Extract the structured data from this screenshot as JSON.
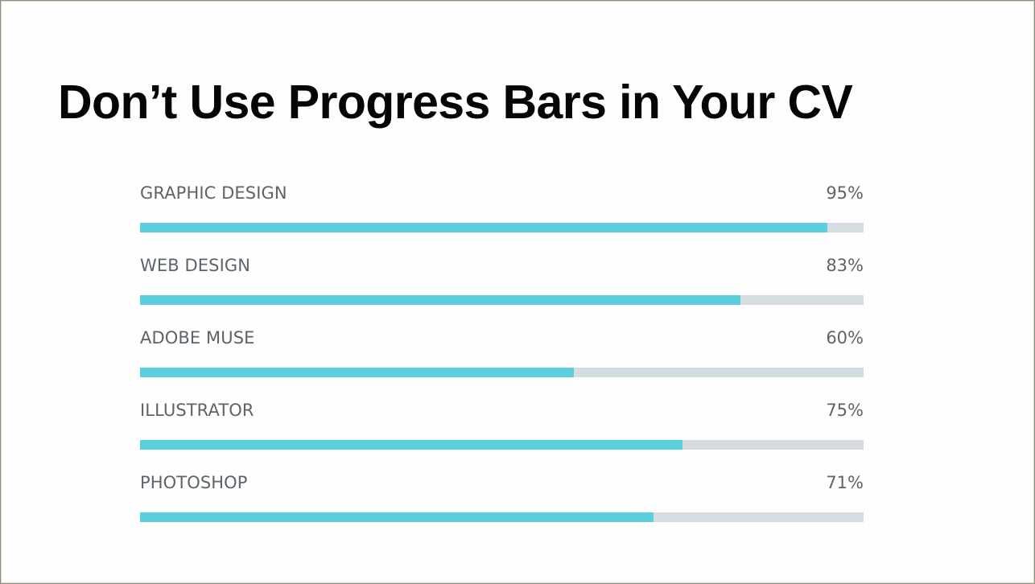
{
  "headline": "Don’t Use Progress Bars in Your CV",
  "colors": {
    "bar_fill": "#5ccfdd",
    "bar_track": "#d5dde1",
    "label_text": "#5d6469",
    "headline_text": "#050505"
  },
  "chart_data": {
    "type": "bar",
    "orientation": "horizontal",
    "categories": [
      "GRAPHIC DESIGN",
      "WEB DESIGN",
      "ADOBE MUSE",
      "ILLUSTRATOR",
      "PHOTOSHOP"
    ],
    "values": [
      95,
      83,
      60,
      75,
      71
    ],
    "value_labels": [
      "95%",
      "83%",
      "60%",
      "75%",
      "71%"
    ],
    "xlim": [
      0,
      100
    ],
    "unit": "%",
    "grid": false
  }
}
